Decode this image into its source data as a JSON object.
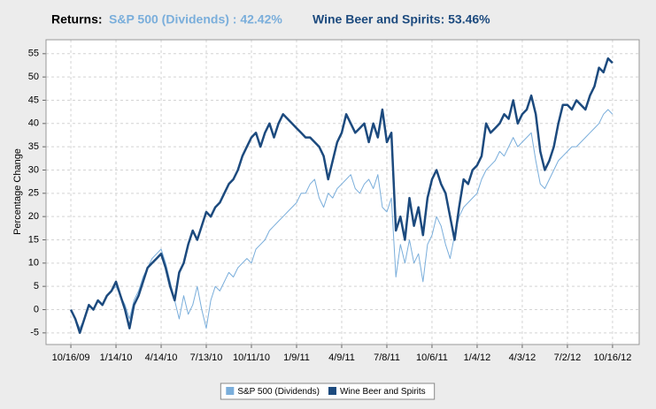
{
  "chart_data": {
    "type": "line",
    "title": "Returns:",
    "annotations": [
      "S&P 500 (Dividends) : 42.42%",
      "Wine Beer and Spirits: 53.46%"
    ],
    "ylabel": "Percentage Change",
    "x": [
      0,
      1,
      2,
      3,
      4,
      5,
      6,
      7,
      8,
      9,
      10,
      11,
      12,
      13,
      14,
      15,
      16,
      17,
      18,
      19,
      20,
      21,
      22,
      23,
      24,
      25,
      26,
      27,
      28,
      29,
      30,
      31,
      32,
      33,
      34,
      35,
      36,
      37,
      38,
      39,
      40,
      41,
      42,
      43,
      44,
      45,
      46,
      47,
      48,
      49,
      50,
      51,
      52,
      53,
      54,
      55,
      56,
      57,
      58,
      59,
      60,
      61,
      62,
      63,
      64,
      65,
      66,
      67,
      68,
      69,
      70,
      71,
      72,
      73,
      74,
      75,
      76,
      77,
      78,
      79,
      80,
      81,
      82,
      83,
      84,
      85,
      86,
      87,
      88,
      89,
      90,
      91,
      92,
      93,
      94,
      95,
      96,
      97,
      98,
      99,
      100,
      101,
      102,
      103,
      104,
      105,
      106,
      107,
      108,
      109,
      110,
      111,
      112,
      113,
      114,
      115,
      116,
      117,
      118,
      119,
      120
    ],
    "series": [
      {
        "name": "S&P 500 (Dividends)",
        "color": "#7aaedb",
        "width": 1,
        "values": [
          0,
          -2,
          -4,
          -2,
          1,
          0,
          2,
          1,
          3,
          4,
          5,
          3,
          1,
          -2,
          2,
          4,
          7,
          9,
          11,
          12,
          13,
          10,
          6,
          2,
          -2,
          3,
          -1,
          1,
          5,
          0,
          -4,
          2,
          5,
          4,
          6,
          8,
          7,
          9,
          10,
          11,
          10,
          13,
          14,
          15,
          17,
          18,
          19,
          20,
          21,
          22,
          23,
          25,
          25,
          27,
          28,
          24,
          22,
          25,
          24,
          26,
          27,
          28,
          29,
          26,
          25,
          27,
          28,
          26,
          29,
          22,
          21,
          24,
          7,
          14,
          10,
          15,
          10,
          12,
          6,
          14,
          16,
          20,
          18,
          14,
          11,
          16,
          20,
          22,
          23,
          24,
          25,
          28,
          30,
          31,
          32,
          34,
          33,
          35,
          37,
          35,
          36,
          37,
          38,
          32,
          27,
          26,
          28,
          30,
          32,
          33,
          34,
          35,
          35,
          36,
          37,
          38,
          39,
          40,
          42,
          43,
          42
        ]
      },
      {
        "name": "Wine Beer and Spirits",
        "color": "#1c4a7e",
        "width": 2.5,
        "values": [
          0,
          -2,
          -5,
          -2,
          1,
          0,
          2,
          1,
          3,
          4,
          6,
          3,
          0,
          -4,
          1,
          3,
          6,
          9,
          10,
          11,
          12,
          9,
          5,
          2,
          8,
          10,
          14,
          17,
          15,
          18,
          21,
          20,
          22,
          23,
          25,
          27,
          28,
          30,
          33,
          35,
          37,
          38,
          35,
          38,
          40,
          37,
          40,
          42,
          41,
          40,
          39,
          38,
          37,
          37,
          36,
          35,
          33,
          28,
          32,
          36,
          38,
          42,
          40,
          38,
          39,
          40,
          36,
          40,
          37,
          43,
          36,
          38,
          17,
          20,
          15,
          24,
          18,
          22,
          16,
          24,
          28,
          30,
          27,
          25,
          20,
          15,
          22,
          28,
          27,
          30,
          31,
          33,
          40,
          38,
          39,
          40,
          42,
          41,
          45,
          40,
          42,
          43,
          46,
          42,
          34,
          30,
          32,
          35,
          40,
          44,
          44,
          43,
          45,
          44,
          43,
          46,
          48,
          52,
          51,
          54,
          53
        ]
      }
    ],
    "xlim": [
      -5.5,
      125.9
    ],
    "xticks": [
      {
        "value": 0,
        "label": "10/16/09"
      },
      {
        "value": 10,
        "label": "1/14/10"
      },
      {
        "value": 20,
        "label": "4/14/10"
      },
      {
        "value": 30,
        "label": "7/13/10"
      },
      {
        "value": 40,
        "label": "10/11/10"
      },
      {
        "value": 50,
        "label": "1/9/11"
      },
      {
        "value": 60,
        "label": "4/9/11"
      },
      {
        "value": 70,
        "label": "7/8/11"
      },
      {
        "value": 80,
        "label": "10/6/11"
      },
      {
        "value": 90,
        "label": "1/4/12"
      },
      {
        "value": 100,
        "label": "4/3/12"
      },
      {
        "value": 110,
        "label": "7/2/12"
      },
      {
        "value": 120,
        "label": "10/16/12"
      }
    ],
    "ylim": [
      -7.5,
      58
    ],
    "yticks": [
      -5,
      0,
      5,
      10,
      15,
      20,
      25,
      30,
      35,
      40,
      45,
      50,
      55
    ],
    "grid": true,
    "legend": "bottom"
  }
}
